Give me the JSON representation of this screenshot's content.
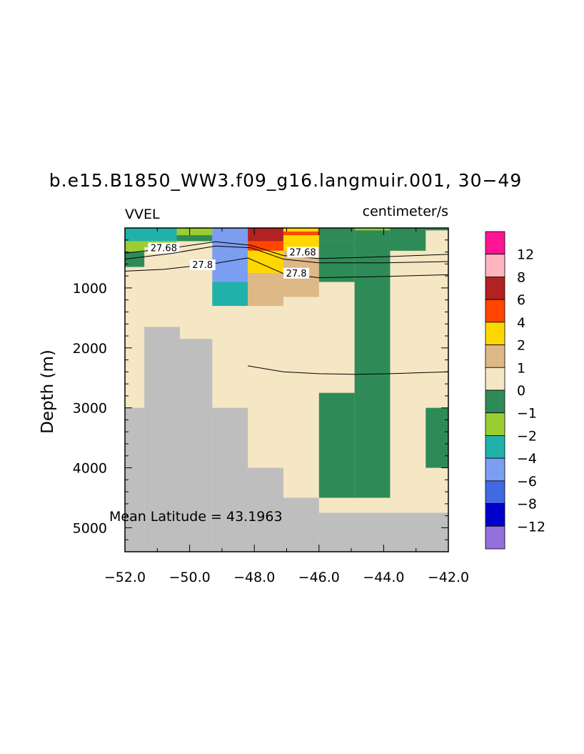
{
  "chart_data": {
    "type": "heatmap",
    "title": "b.e15.B1850_WW3.f09_g16.langmuir.001, 30−49",
    "left_label": "VVEL",
    "right_label": "centimeter/s",
    "ylabel": "Depth (m)",
    "annotation": "Mean Latitude = 43.1963",
    "xlim": [
      -52,
      -42
    ],
    "ylim": [
      5400,
      0
    ],
    "x_ticks": [
      {
        "value": -52,
        "label": "−52.0"
      },
      {
        "value": -50,
        "label": "−50.0"
      },
      {
        "value": -48,
        "label": "−48.0"
      },
      {
        "value": -46,
        "label": "−46.0"
      },
      {
        "value": -44,
        "label": "−44.0"
      },
      {
        "value": -42,
        "label": "−42.0"
      }
    ],
    "y_ticks": [
      {
        "value": 1000,
        "label": "1000"
      },
      {
        "value": 2000,
        "label": "2000"
      },
      {
        "value": 3000,
        "label": "3000"
      },
      {
        "value": 4000,
        "label": "4000"
      },
      {
        "value": 5000,
        "label": "5000"
      }
    ],
    "colorbar": {
      "labels": [
        "12",
        "8",
        "6",
        "4",
        "2",
        "1",
        "0",
        "−1",
        "−2",
        "−4",
        "−6",
        "−8",
        "−12"
      ],
      "colors": [
        "#ff1493",
        "#ffb6c1",
        "#b22222",
        "#ff4500",
        "#ffd700",
        "#deb887",
        "#f5e6c4",
        "#2e8b57",
        "#9acd32",
        "#20b2aa",
        "#7b9ef0",
        "#4169e1",
        "#0000cd",
        "#9370db"
      ]
    },
    "land_color": "#bebebe",
    "cells": [
      {
        "x0": -52,
        "x1": -42,
        "y0": 0,
        "y1": 5400,
        "c": 6
      },
      {
        "x0": -52,
        "x1": -50.4,
        "y0": 0,
        "y1": 220,
        "c": 9
      },
      {
        "x0": -52,
        "x1": -51.4,
        "y0": 220,
        "y1": 400,
        "c": 8
      },
      {
        "x0": -51.4,
        "x1": -50.4,
        "y0": 220,
        "y1": 320,
        "c": 8
      },
      {
        "x0": -52,
        "x1": -51.4,
        "y0": 400,
        "y1": 650,
        "c": 7
      },
      {
        "x0": -50.4,
        "x1": -49.3,
        "y0": 0,
        "y1": 120,
        "c": 8
      },
      {
        "x0": -50.4,
        "x1": -49.3,
        "y0": 120,
        "y1": 220,
        "c": 7
      },
      {
        "x0": -49.3,
        "x1": -48.2,
        "y0": 0,
        "y1": 900,
        "c": 10
      },
      {
        "x0": -49.3,
        "x1": -48.2,
        "y0": 900,
        "y1": 1300,
        "c": 9
      },
      {
        "x0": -48.2,
        "x1": -47.1,
        "y0": 0,
        "y1": 220,
        "c": 2
      },
      {
        "x0": -48.2,
        "x1": -47.1,
        "y0": 220,
        "y1": 380,
        "c": 3
      },
      {
        "x0": -48.2,
        "x1": -47.1,
        "y0": 380,
        "y1": 750,
        "c": 4
      },
      {
        "x0": -48.2,
        "x1": -47.1,
        "y0": 750,
        "y1": 1300,
        "c": 5
      },
      {
        "x0": -47.1,
        "x1": -46.0,
        "y0": 0,
        "y1": 60,
        "c": 4
      },
      {
        "x0": -47.1,
        "x1": -46.0,
        "y0": 60,
        "y1": 120,
        "c": 3
      },
      {
        "x0": -47.1,
        "x1": -46.0,
        "y0": 120,
        "y1": 380,
        "c": 4
      },
      {
        "x0": -47.1,
        "x1": -46.0,
        "y0": 380,
        "y1": 1150,
        "c": 5
      },
      {
        "x0": -46.0,
        "x1": -44.9,
        "y0": 0,
        "y1": 220,
        "c": 7
      },
      {
        "x0": -46.0,
        "x1": -44.9,
        "y0": 220,
        "y1": 900,
        "c": 7
      },
      {
        "x0": -44.9,
        "x1": -43.8,
        "y0": 0,
        "y1": 4500,
        "c": 7
      },
      {
        "x0": -44.9,
        "x1": -43.8,
        "y0": 0,
        "y1": 40,
        "c": 8
      },
      {
        "x0": -43.8,
        "x1": -42.7,
        "y0": 0,
        "y1": 380,
        "c": 7
      },
      {
        "x0": -42.7,
        "x1": -42,
        "y0": 0,
        "y1": 40,
        "c": 7
      },
      {
        "x0": -46.0,
        "x1": -44.9,
        "y0": 2750,
        "y1": 4500,
        "c": 7
      },
      {
        "x0": -42.7,
        "x1": -42,
        "y0": 3000,
        "y1": 4000,
        "c": 7
      }
    ],
    "land": [
      {
        "x0": -52,
        "x1": -51.4,
        "y0": 3000,
        "y1": 5400
      },
      {
        "x0": -51.4,
        "x1": -50.3,
        "y0": 1650,
        "y1": 5400
      },
      {
        "x0": -50.3,
        "x1": -49.3,
        "y0": 1850,
        "y1": 5400
      },
      {
        "x0": -49.3,
        "x1": -48.2,
        "y0": 3000,
        "y1": 5400
      },
      {
        "x0": -48.2,
        "x1": -47.1,
        "y0": 4000,
        "y1": 5400
      },
      {
        "x0": -47.1,
        "x1": -46.0,
        "y0": 4500,
        "y1": 5400
      },
      {
        "x0": -46.0,
        "x1": -42,
        "y0": 4750,
        "y1": 5400
      }
    ],
    "contours": [
      {
        "label": "27.68",
        "label_at": [
          [
            -50.8,
            340
          ],
          [
            -46.5,
            410
          ]
        ],
        "points": [
          [
            -52,
            420
          ],
          [
            -50.5,
            330
          ],
          [
            -49.2,
            230
          ],
          [
            -48.1,
            290
          ],
          [
            -47.1,
            460
          ],
          [
            -46,
            510
          ],
          [
            -44,
            480
          ],
          [
            -42,
            440
          ]
        ]
      },
      {
        "label": "",
        "label_at": [],
        "points": [
          [
            -52,
            520
          ],
          [
            -50.5,
            420
          ],
          [
            -49.2,
            300
          ],
          [
            -48.1,
            330
          ],
          [
            -47.1,
            520
          ],
          [
            -46,
            580
          ],
          [
            -44,
            580
          ],
          [
            -42,
            560
          ]
        ]
      },
      {
        "label": "27.8",
        "label_at": [
          [
            -49.6,
            620
          ],
          [
            -46.7,
            760
          ]
        ],
        "points": [
          [
            -52,
            720
          ],
          [
            -50.8,
            690
          ],
          [
            -49.3,
            600
          ],
          [
            -48.2,
            500
          ],
          [
            -47.1,
            760
          ],
          [
            -46,
            830
          ],
          [
            -44,
            810
          ],
          [
            -42,
            780
          ]
        ]
      },
      {
        "label": "",
        "label_at": [],
        "points": [
          [
            -48.2,
            2300
          ],
          [
            -47.1,
            2400
          ],
          [
            -46,
            2430
          ],
          [
            -44.9,
            2440
          ],
          [
            -43.8,
            2430
          ],
          [
            -42,
            2400
          ]
        ]
      }
    ]
  }
}
